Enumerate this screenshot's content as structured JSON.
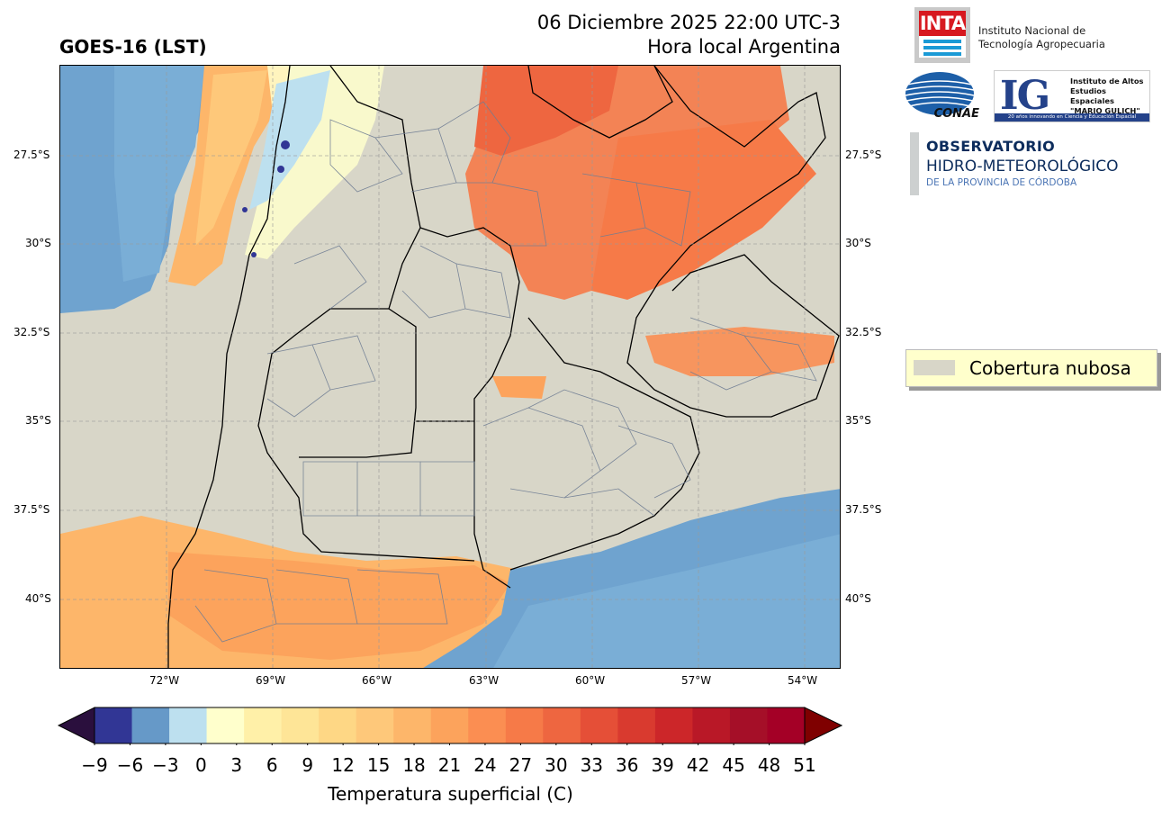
{
  "header": {
    "satellite_title": "GOES-16 (LST)",
    "datetime": "06 Diciembre 2025 22:00 UTC-3",
    "local_time_note": "Hora local Argentina"
  },
  "map": {
    "lat_labels": [
      "27.5°S",
      "30°S",
      "32.5°S",
      "35°S",
      "37.5°S",
      "40°S"
    ],
    "lon_labels": [
      "72°W",
      "69°W",
      "66°W",
      "63°W",
      "60°W",
      "57°W",
      "54°W"
    ]
  },
  "legend": {
    "cloud_cover_label": "Cobertura nubosa",
    "cloud_color": "#d8d6c8"
  },
  "colorbar": {
    "label": "Temperatura superficial (C)",
    "ticks": [
      "−9",
      "−6",
      "−3",
      "0",
      "3",
      "6",
      "9",
      "12",
      "15",
      "18",
      "21",
      "24",
      "27",
      "30",
      "33",
      "36",
      "39",
      "42",
      "45",
      "48",
      "51"
    ],
    "under_color": "#2a0f3d",
    "over_color": "#7f0000",
    "colors": [
      "#313695",
      "#6699c8",
      "#bde0ef",
      "#ffffcc",
      "#fff0a8",
      "#fee597",
      "#fed785",
      "#fec87a",
      "#fdb66a",
      "#fca35c",
      "#fb8e52",
      "#f67a48",
      "#ee6640",
      "#e54f37",
      "#d93a2f",
      "#cc2629",
      "#b91827",
      "#a50f28",
      "#a40026"
    ]
  },
  "logos": {
    "inta_mark": "INTA",
    "inta_name_line1": "Instituto Nacional de",
    "inta_name_line2": "Tecnología Agropecuaria",
    "conae_mark": "CONAE",
    "ig_mark": "IG",
    "ig_line1": "Instituto de Altos",
    "ig_line2": "Estudios Espaciales",
    "ig_line3": "\"MARIO GULICH\"",
    "ig_tagline": "20 años innovando en Ciencia y Educación Espacial",
    "obs_line1": "OBSERVATORIO",
    "obs_line2": "HIDRO-METEOROLÓGICO",
    "obs_line3": "DE LA PROVINCIA DE CÓRDOBA"
  }
}
